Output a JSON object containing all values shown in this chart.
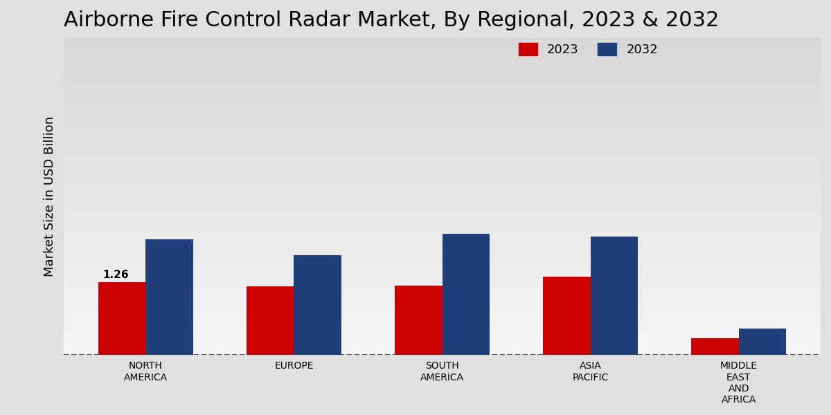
{
  "title": "Airborne Fire Control Radar Market, By Regional, 2023 & 2032",
  "ylabel": "Market Size in USD Billion",
  "categories": [
    "NORTH\nAMERICA",
    "EUROPE",
    "SOUTH\nAMERICA",
    "ASIA\nPACIFIC",
    "MIDDLE\nEAST\nAND\nAFRICA"
  ],
  "values_2023": [
    1.26,
    1.18,
    1.2,
    1.35,
    0.28
  ],
  "values_2032": [
    2.0,
    1.72,
    2.1,
    2.05,
    0.45
  ],
  "color_2023": "#cc0000",
  "color_2032": "#1e3f7a",
  "annotation_label": "1.26",
  "annotation_index": 0,
  "background_color_top": "#d8d8d8",
  "background_color_bottom": "#f5f5f5",
  "bar_width": 0.32,
  "legend_labels": [
    "2023",
    "2032"
  ],
  "title_fontsize": 22,
  "axis_label_fontsize": 13,
  "tick_label_fontsize": 10,
  "ylim": [
    0,
    5.5
  ]
}
